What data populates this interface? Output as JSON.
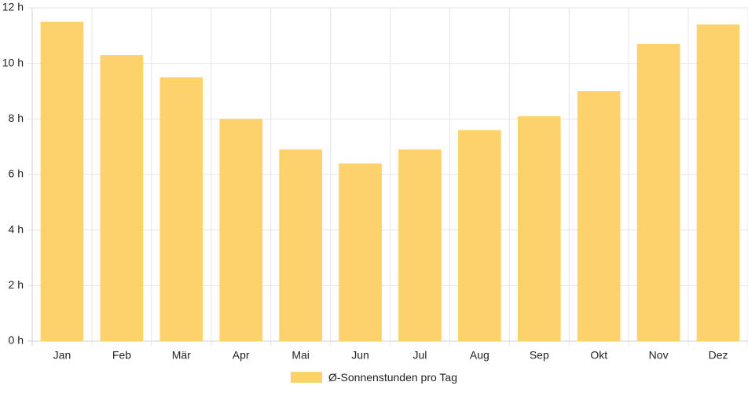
{
  "chart_data": {
    "type": "bar",
    "categories": [
      "Jan",
      "Feb",
      "Mär",
      "Apr",
      "Mai",
      "Jun",
      "Jul",
      "Aug",
      "Sep",
      "Okt",
      "Nov",
      "Dez"
    ],
    "series": [
      {
        "name": "Ø-Sonnenstunden pro Tag",
        "values": [
          11.5,
          10.3,
          9.5,
          8.0,
          6.9,
          6.4,
          6.9,
          7.6,
          8.1,
          9.0,
          10.7,
          11.4
        ],
        "color": "#fdd26a"
      }
    ],
    "y_ticks": [
      "0 h",
      "2 h",
      "4 h",
      "6 h",
      "8 h",
      "10 h",
      "12 h"
    ],
    "ylim": [
      0,
      12
    ],
    "grid": true,
    "legend_position": "bottom"
  }
}
